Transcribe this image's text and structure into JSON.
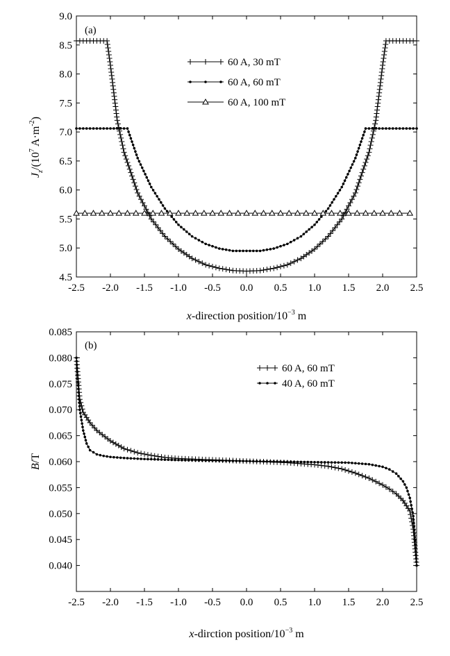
{
  "chart_data": [
    {
      "panel": "(a)",
      "type": "line",
      "xlabel_italic": "x",
      "xlabel_rest": "-direction position/10",
      "xlabel_exp": "−3",
      "xlabel_unit": " m",
      "ylabel_main": "J",
      "ylabel_sub": "z",
      "ylabel_rest": "/(10",
      "ylabel_exp": "7",
      "ylabel_unit": " A·m",
      "ylabel_exp2": "-2",
      "ylabel_close": ")",
      "xlim": [
        -2.5,
        2.5
      ],
      "ylim": [
        4.5,
        9.0
      ],
      "xticks": [
        "-2.5",
        "-2.0",
        "-1.5",
        "-1.0",
        "-0.5",
        "0.0",
        "0.5",
        "1.0",
        "1.5",
        "2.0",
        "2.5"
      ],
      "yticks": [
        "4.5",
        "5.0",
        "5.5",
        "6.0",
        "6.5",
        "7.0",
        "7.5",
        "8.0",
        "8.5",
        "9.0"
      ],
      "legend_position": "top-center",
      "series": [
        {
          "name": "60 A, 30 mT",
          "marker": "plus",
          "x": [
            -2.5,
            -2.05,
            -2.0,
            -1.9,
            -1.8,
            -1.6,
            -1.4,
            -1.2,
            -1.0,
            -0.8,
            -0.6,
            -0.4,
            -0.2,
            0.0,
            0.2,
            0.4,
            0.6,
            0.8,
            1.0,
            1.2,
            1.4,
            1.6,
            1.8,
            1.9,
            2.0,
            2.05,
            2.5
          ],
          "y": [
            8.57,
            8.57,
            8.15,
            7.2,
            6.65,
            5.95,
            5.5,
            5.2,
            4.98,
            4.82,
            4.71,
            4.65,
            4.61,
            4.6,
            4.61,
            4.65,
            4.71,
            4.82,
            4.98,
            5.2,
            5.5,
            5.95,
            6.65,
            7.2,
            8.15,
            8.57,
            8.57
          ]
        },
        {
          "name": "60 A, 60 mT",
          "marker": "dot",
          "x": [
            -2.5,
            -1.75,
            -1.6,
            -1.4,
            -1.2,
            -1.0,
            -0.8,
            -0.6,
            -0.4,
            -0.2,
            0.0,
            0.2,
            0.4,
            0.6,
            0.8,
            1.0,
            1.2,
            1.4,
            1.6,
            1.75,
            2.5
          ],
          "y": [
            7.06,
            7.06,
            6.55,
            6.05,
            5.68,
            5.4,
            5.2,
            5.07,
            4.99,
            4.95,
            4.95,
            4.95,
            4.99,
            5.07,
            5.2,
            5.4,
            5.68,
            6.05,
            6.55,
            7.06,
            7.06
          ]
        },
        {
          "name": "60 A, 100 mT",
          "marker": "triangle",
          "x": [
            -2.5,
            -2.25,
            -2.0,
            -1.75,
            -1.5,
            -1.25,
            -1.0,
            -0.75,
            -0.5,
            -0.25,
            0.0,
            0.25,
            0.5,
            0.75,
            1.0,
            1.25,
            1.5,
            1.75,
            2.0,
            2.25,
            2.4
          ],
          "y": [
            5.6,
            5.6,
            5.6,
            5.6,
            5.6,
            5.6,
            5.6,
            5.6,
            5.6,
            5.6,
            5.6,
            5.6,
            5.6,
            5.6,
            5.6,
            5.6,
            5.6,
            5.6,
            5.6,
            5.6,
            5.6
          ]
        }
      ]
    },
    {
      "panel": "(b)",
      "type": "line",
      "xlabel_italic": "x",
      "xlabel_rest": "-dirction position/10",
      "xlabel_exp": "−3",
      "xlabel_unit": " m",
      "ylabel_main": "B",
      "ylabel_rest": "/T",
      "xlim": [
        -2.5,
        2.5
      ],
      "ylim": [
        0.035,
        0.085
      ],
      "xticks": [
        "-2.5",
        "-2.0",
        "-1.5",
        "-1.0",
        "-0.5",
        "0.0",
        "0.5",
        "1.0",
        "1.5",
        "2.0",
        "2.5"
      ],
      "yticks": [
        "0.040",
        "0.045",
        "0.050",
        "0.055",
        "0.060",
        "0.065",
        "0.070",
        "0.075",
        "0.080",
        "0.085"
      ],
      "legend_position": "top-right",
      "series": [
        {
          "name": "60 A, 60 mT",
          "marker": "plus",
          "x": [
            -2.5,
            -2.45,
            -2.4,
            -2.3,
            -2.2,
            -2.0,
            -1.8,
            -1.6,
            -1.4,
            -1.2,
            -1.0,
            -0.8,
            -0.6,
            -0.4,
            -0.2,
            0.0,
            0.2,
            0.4,
            0.6,
            0.8,
            1.0,
            1.2,
            1.4,
            1.6,
            1.8,
            2.0,
            2.1,
            2.2,
            2.3,
            2.4,
            2.45,
            2.5
          ],
          "y": [
            0.08,
            0.072,
            0.0695,
            0.0675,
            0.066,
            0.064,
            0.0625,
            0.0617,
            0.0612,
            0.0608,
            0.0606,
            0.0605,
            0.0604,
            0.0603,
            0.0602,
            0.0601,
            0.06,
            0.0599,
            0.0598,
            0.0596,
            0.0594,
            0.0591,
            0.0586,
            0.0578,
            0.0568,
            0.0555,
            0.0547,
            0.0538,
            0.0525,
            0.0505,
            0.047,
            0.04
          ]
        },
        {
          "name": "40 A, 60 mT",
          "marker": "dot",
          "x": [
            -2.5,
            -2.45,
            -2.4,
            -2.35,
            -2.3,
            -2.2,
            -2.1,
            -2.0,
            -1.8,
            -1.5,
            -1.0,
            -0.5,
            0.0,
            0.5,
            1.0,
            1.5,
            1.8,
            2.0,
            2.1,
            2.2,
            2.3,
            2.35,
            2.4,
            2.45,
            2.5
          ],
          "y": [
            0.08,
            0.07,
            0.066,
            0.0635,
            0.0622,
            0.0614,
            0.0611,
            0.0609,
            0.0607,
            0.0605,
            0.0603,
            0.0602,
            0.0601,
            0.06,
            0.0599,
            0.0598,
            0.0595,
            0.059,
            0.0585,
            0.0577,
            0.0562,
            0.055,
            0.053,
            0.0495,
            0.04
          ]
        }
      ]
    }
  ]
}
